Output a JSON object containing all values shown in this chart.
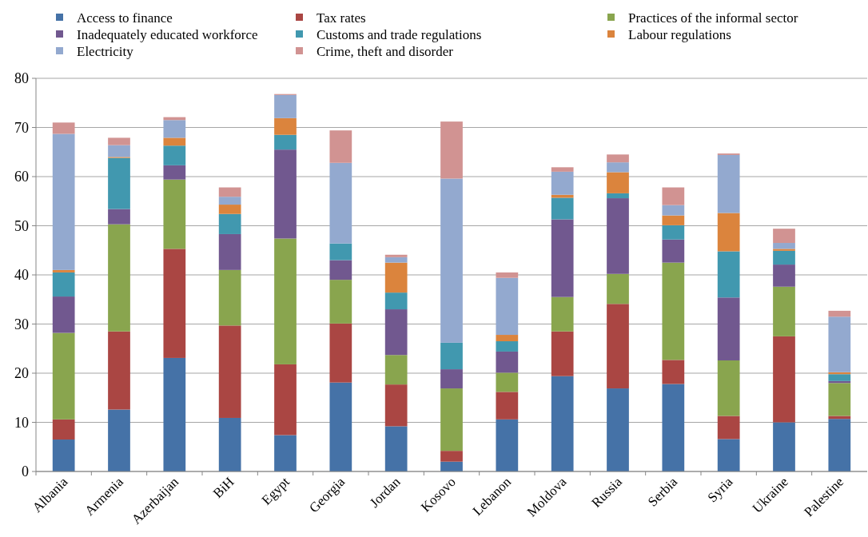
{
  "chart_data": {
    "type": "bar",
    "stacked": true,
    "categories": [
      "Albania",
      "Armenia",
      "Azerbaijan",
      "BiH",
      "Egypt",
      "Georgia",
      "Jordan",
      "Kosovo",
      "Lebanon",
      "Moldova",
      "Russia",
      "Serbia",
      "Syria",
      "Ukraine",
      "Palestine"
    ],
    "series": [
      {
        "name": "Access to finance",
        "color": "#4572a7",
        "values": [
          6.5,
          12.6,
          23.1,
          10.9,
          7.4,
          18.1,
          9.2,
          2.0,
          10.6,
          19.4,
          16.9,
          17.8,
          6.6,
          10.0,
          10.7
        ]
      },
      {
        "name": "Tax rates",
        "color": "#aa4643",
        "values": [
          4.1,
          15.9,
          22.2,
          18.8,
          14.4,
          12.0,
          8.5,
          2.2,
          5.6,
          9.1,
          17.2,
          4.9,
          4.7,
          17.5,
          0.6
        ]
      },
      {
        "name": "Practices of the informal sector",
        "color": "#89a54e",
        "values": [
          17.6,
          21.8,
          14.1,
          11.3,
          25.6,
          8.9,
          6.0,
          12.7,
          3.9,
          7.0,
          6.1,
          19.8,
          11.3,
          10.1,
          6.7
        ]
      },
      {
        "name": "Inadequately educated workforce",
        "color": "#71588f",
        "values": [
          7.4,
          3.1,
          2.9,
          7.3,
          18.1,
          4.0,
          9.3,
          3.9,
          4.3,
          15.8,
          15.4,
          4.7,
          12.8,
          4.5,
          0.4
        ]
      },
      {
        "name": "Customs and trade regulations",
        "color": "#4198af",
        "values": [
          4.9,
          10.4,
          4.0,
          4.1,
          3.0,
          3.4,
          3.4,
          5.4,
          2.1,
          4.4,
          1.0,
          2.9,
          9.4,
          2.8,
          1.4
        ]
      },
      {
        "name": "Labour regulations",
        "color": "#db843d",
        "values": [
          0.5,
          0.2,
          1.6,
          1.9,
          3.4,
          0,
          6.1,
          0,
          1.3,
          0.6,
          4.3,
          2.0,
          7.8,
          0.4,
          0.4
        ]
      },
      {
        "name": "Electricity",
        "color": "#93a9cf",
        "values": [
          27.7,
          2.4,
          3.6,
          1.6,
          4.7,
          16.4,
          1.1,
          33.4,
          11.6,
          4.7,
          2.0,
          2.1,
          11.8,
          1.2,
          11.3
        ]
      },
      {
        "name": "Crime, theft and disorder",
        "color": "#d19392",
        "values": [
          2.3,
          1.5,
          0.6,
          1.9,
          0.2,
          6.6,
          0.5,
          11.6,
          1.1,
          0.9,
          1.6,
          3.6,
          0.3,
          2.9,
          1.2
        ]
      }
    ],
    "ylim": [
      0,
      80
    ],
    "yticks": [
      0,
      10,
      20,
      30,
      40,
      50,
      60,
      70,
      80
    ],
    "grid": "y",
    "legend": "top"
  }
}
